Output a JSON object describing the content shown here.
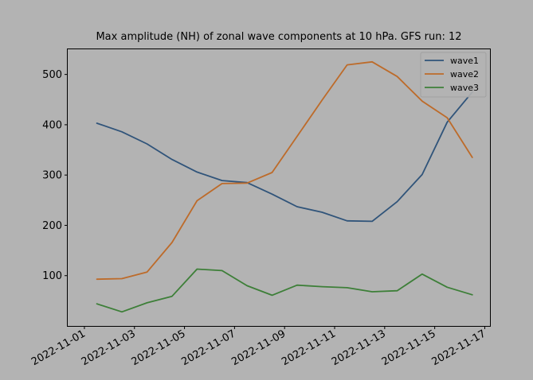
{
  "chart_data": {
    "type": "line",
    "title": "Max amplitude (NH) of zonal wave components at 10 hPa. GFS run: 12",
    "xlabel": "",
    "ylabel": "",
    "x": [
      "2022-11-01T12",
      "2022-11-02T12",
      "2022-11-03T12",
      "2022-11-04T12",
      "2022-11-05T12",
      "2022-11-06T12",
      "2022-11-07T12",
      "2022-11-08T12",
      "2022-11-09T12",
      "2022-11-10T12",
      "2022-11-11T12",
      "2022-11-12T12",
      "2022-11-13T12",
      "2022-11-14T12",
      "2022-11-15T12",
      "2022-11-16T12"
    ],
    "x_ticks": [
      "2022-11-01",
      "2022-11-03",
      "2022-11-05",
      "2022-11-07",
      "2022-11-09",
      "2022-11-11",
      "2022-11-13",
      "2022-11-15",
      "2022-11-17"
    ],
    "xlim": [
      "2022-10-31T08",
      "2022-11-17T05"
    ],
    "ylim": [
      0,
      550
    ],
    "y_ticks": [
      100,
      200,
      300,
      400,
      500
    ],
    "grid": false,
    "legend_position": "top-right",
    "series": [
      {
        "name": "wave1",
        "color": "#30547a",
        "values": [
          403,
          386,
          362,
          331,
          306,
          289,
          285,
          262,
          237,
          226,
          209,
          208,
          247,
          301,
          405,
          465
        ]
      },
      {
        "name": "wave2",
        "color": "#bd6b2a",
        "values": [
          93,
          94,
          107,
          166,
          249,
          283,
          284,
          305,
          377,
          449,
          519,
          525,
          496,
          447,
          414,
          335
        ]
      },
      {
        "name": "wave3",
        "color": "#3d7f38",
        "values": [
          44,
          28,
          46,
          59,
          113,
          110,
          80,
          61,
          81,
          78,
          76,
          68,
          70,
          103,
          77,
          62
        ]
      }
    ]
  }
}
